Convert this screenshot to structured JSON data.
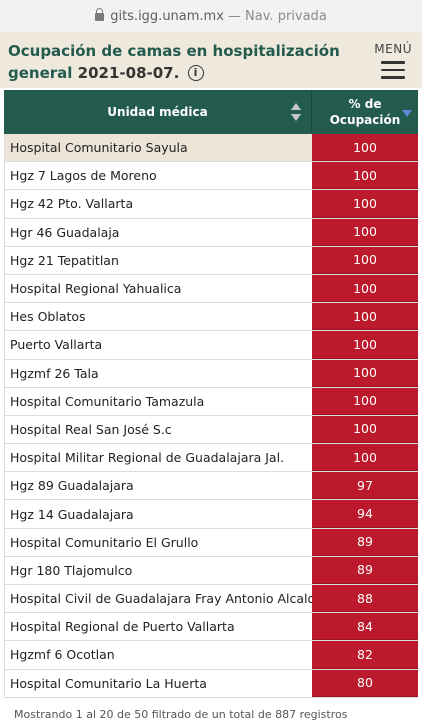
{
  "browser": {
    "url": "gits.igg.unam.mx",
    "mode": "— Nav. privada"
  },
  "header": {
    "title": "Ocupación de camas en hospitalización general",
    "date": "2021-08-07.",
    "info_icon": "i",
    "menu_label": "MENÚ"
  },
  "table": {
    "col_unit": "Unidad médica",
    "col_pct": "% de Ocupación",
    "rows": [
      {
        "unit": "Hospital Comunitario Sayula",
        "pct": "100"
      },
      {
        "unit": "Hgz 7 Lagos de Moreno",
        "pct": "100"
      },
      {
        "unit": "Hgz 42 Pto. Vallarta",
        "pct": "100"
      },
      {
        "unit": "Hgr 46 Guadalaja",
        "pct": "100"
      },
      {
        "unit": "Hgz 21 Tepatitlan",
        "pct": "100"
      },
      {
        "unit": "Hospital Regional Yahualica",
        "pct": "100"
      },
      {
        "unit": "Hes Oblatos",
        "pct": "100"
      },
      {
        "unit": "Puerto Vallarta",
        "pct": "100"
      },
      {
        "unit": "Hgzmf 26 Tala",
        "pct": "100"
      },
      {
        "unit": "Hospital Comunitario Tamazula",
        "pct": "100"
      },
      {
        "unit": "Hospital Real San José S.c",
        "pct": "100"
      },
      {
        "unit": "Hospital Militar Regional de Guadalajara Jal.",
        "pct": "100"
      },
      {
        "unit": "Hgz 89 Guadalajara",
        "pct": "97"
      },
      {
        "unit": "Hgz 14 Guadalajara",
        "pct": "94"
      },
      {
        "unit": "Hospital Comunitario El Grullo",
        "pct": "89"
      },
      {
        "unit": "Hgr 180 Tlajomulco",
        "pct": "89"
      },
      {
        "unit": "Hospital Civil de Guadalajara Fray Antonio Alcalde",
        "pct": "88"
      },
      {
        "unit": "Hospital Regional de Puerto Vallarta",
        "pct": "84"
      },
      {
        "unit": "Hgzmf 6 Ocotlan",
        "pct": "82"
      },
      {
        "unit": "Hospital Comunitario La Huerta",
        "pct": "80"
      }
    ]
  },
  "footer": {
    "info": "Mostrando 1 al 20 de 50 filtrado de un total de 887 registros"
  }
}
